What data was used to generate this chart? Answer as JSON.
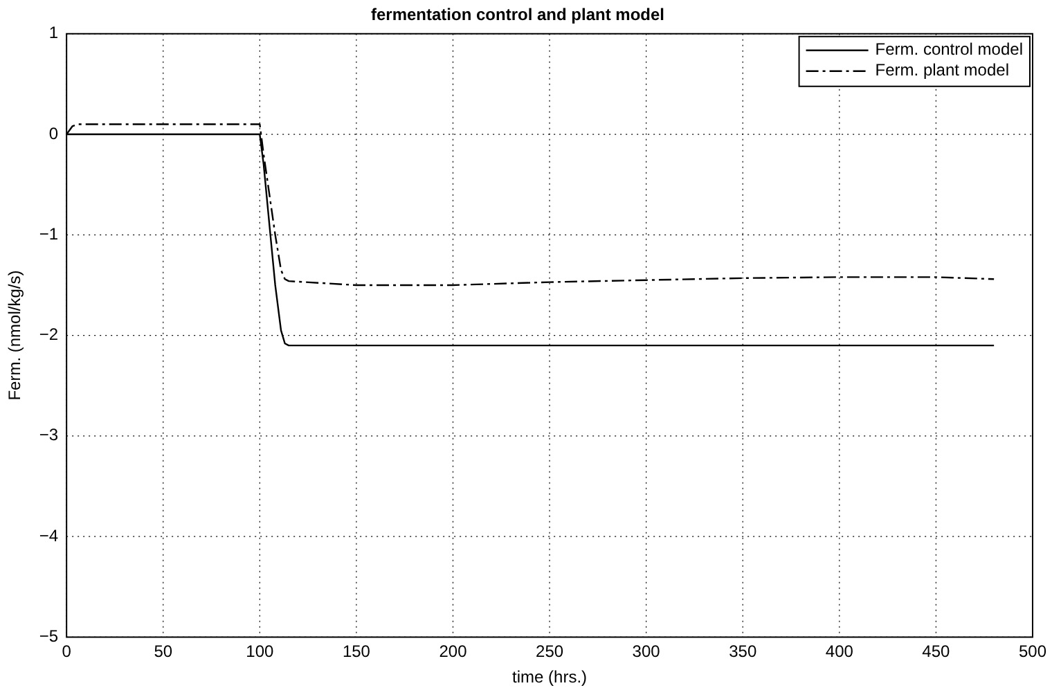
{
  "chart_data": {
    "type": "line",
    "title": "fermentation control and plant model",
    "xlabel": "time (hrs.)",
    "ylabel": "Ferm. (nmol/kg/s)",
    "xlim": [
      0,
      500
    ],
    "xticks": [
      0,
      50,
      100,
      150,
      200,
      250,
      300,
      350,
      400,
      450,
      500
    ],
    "ylim": [
      -5,
      1
    ],
    "yticks": [
      -5,
      -4,
      -3,
      -2,
      -1,
      0,
      1
    ],
    "grid": true,
    "legend": "top right",
    "marker": "none",
    "series": [
      {
        "name": "Ferm. control model",
        "color": "#000000",
        "line_style": "solid",
        "x": [
          0,
          50,
          100,
          102,
          105,
          108,
          111,
          113,
          115,
          150,
          200,
          300,
          400,
          480
        ],
        "values": [
          0,
          0,
          0,
          -0.3,
          -0.9,
          -1.5,
          -1.95,
          -2.08,
          -2.1,
          -2.1,
          -2.1,
          -2.1,
          -2.1,
          -2.1
        ]
      },
      {
        "name": "Ferm. plant model",
        "color": "#000000",
        "line_style": "dashed",
        "x": [
          0,
          3,
          6,
          50,
          100,
          102,
          105,
          108,
          111,
          113,
          115,
          150,
          200,
          250,
          300,
          350,
          400,
          450,
          480
        ],
        "values": [
          0,
          0.08,
          0.1,
          0.1,
          0.1,
          -0.2,
          -0.6,
          -1,
          -1.35,
          -1.44,
          -1.46,
          -1.5,
          -1.5,
          -1.47,
          -1.45,
          -1.43,
          -1.42,
          -1.42,
          -1.44
        ]
      }
    ]
  }
}
